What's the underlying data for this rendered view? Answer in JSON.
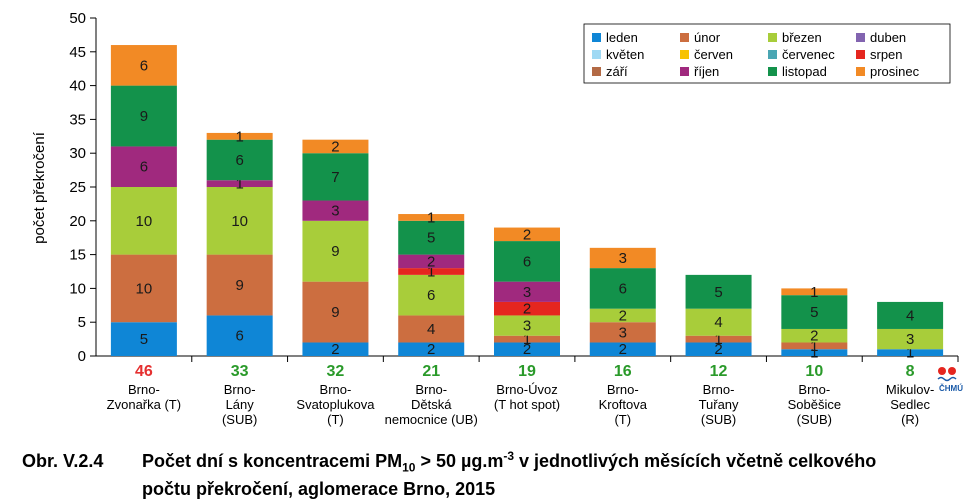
{
  "chart_data": {
    "type": "bar",
    "stacked": true,
    "ylabel": "počet překročení",
    "ylim": [
      0,
      50
    ],
    "yticks": [
      0,
      5,
      10,
      15,
      20,
      25,
      30,
      35,
      40,
      45,
      50
    ],
    "grid": false,
    "legend": "top-right",
    "categories": [
      {
        "lines": [
          "Brno-",
          "Zvonařka (T)"
        ],
        "total": 46,
        "total_color": "#e53030"
      },
      {
        "lines": [
          "Brno-",
          "Lány",
          "(SUB)"
        ],
        "total": 33,
        "total_color": "#2a9a2a"
      },
      {
        "lines": [
          "Brno-",
          "Svatoplukova",
          "(T)"
        ],
        "total": 32,
        "total_color": "#2a9a2a"
      },
      {
        "lines": [
          "Brno-",
          "Dětská",
          "nemocnice (UB)"
        ],
        "total": 21,
        "total_color": "#2a9a2a"
      },
      {
        "lines": [
          "Brno-Úvoz",
          "(T hot spot)"
        ],
        "total": 19,
        "total_color": "#2a9a2a"
      },
      {
        "lines": [
          "Brno-",
          "Kroftova",
          "(T)"
        ],
        "total": 16,
        "total_color": "#2a9a2a"
      },
      {
        "lines": [
          "Brno-",
          "Tuřany",
          "(SUB)"
        ],
        "total": 12,
        "total_color": "#2a9a2a"
      },
      {
        "lines": [
          "Brno-",
          "Soběšice",
          "(SUB)"
        ],
        "total": 10,
        "total_color": "#2a9a2a"
      },
      {
        "lines": [
          "Mikulov-",
          "Sedlec",
          "(R)"
        ],
        "total": 8,
        "total_color": "#2a9a2a"
      }
    ],
    "series": [
      {
        "name": "leden",
        "color": "#0f86d6",
        "values": [
          5,
          6,
          2,
          2,
          2,
          2,
          2,
          1,
          1
        ]
      },
      {
        "name": "únor",
        "color": "#cc6e40",
        "values": [
          10,
          9,
          9,
          4,
          1,
          3,
          1,
          1,
          0
        ]
      },
      {
        "name": "březen",
        "color": "#a8cd3a",
        "values": [
          10,
          10,
          9,
          6,
          3,
          2,
          4,
          2,
          3
        ]
      },
      {
        "name": "duben",
        "color": "#8264b0",
        "values": [
          0,
          0,
          0,
          0,
          0,
          0,
          0,
          0,
          0
        ]
      },
      {
        "name": "květen",
        "color": "#9fd9f4",
        "values": [
          0,
          0,
          0,
          0,
          0,
          0,
          0,
          0,
          0
        ]
      },
      {
        "name": "červen",
        "color": "#f7c200",
        "values": [
          0,
          0,
          0,
          0,
          0,
          0,
          0,
          0,
          0
        ]
      },
      {
        "name": "červenec",
        "color": "#4aa6b3",
        "values": [
          0,
          0,
          0,
          0,
          0,
          0,
          0,
          0,
          0
        ]
      },
      {
        "name": "srpen",
        "color": "#e5261f",
        "values": [
          0,
          0,
          0,
          1,
          2,
          0,
          0,
          0,
          0
        ]
      },
      {
        "name": "září",
        "color": "#b36a45",
        "values": [
          0,
          0,
          0,
          0,
          0,
          0,
          0,
          0,
          0
        ]
      },
      {
        "name": "říjen",
        "color": "#a0297e",
        "values": [
          6,
          1,
          3,
          2,
          3,
          0,
          0,
          0,
          0
        ]
      },
      {
        "name": "listopad",
        "color": "#13924b",
        "values": [
          9,
          6,
          7,
          5,
          6,
          6,
          5,
          5,
          4
        ]
      },
      {
        "name": "prosinec",
        "color": "#f28a25",
        "values": [
          6,
          1,
          2,
          1,
          2,
          3,
          0,
          1,
          0
        ]
      }
    ]
  },
  "caption": {
    "number": "Obr. V.2.4",
    "text_before_pm": "Počet dní s koncentracemi PM",
    "pm_sub": "10",
    "text_mid": " > 50 µg.m",
    "exp": "-3",
    "text_after": " v jednotlivých měsících včetně celkového",
    "line2": "počtu překročení, aglomerace Brno, 2015"
  },
  "logo": {
    "text": "ČHMÚ",
    "dot_color": "#e5261f",
    "text_color": "#1a5aa8"
  }
}
